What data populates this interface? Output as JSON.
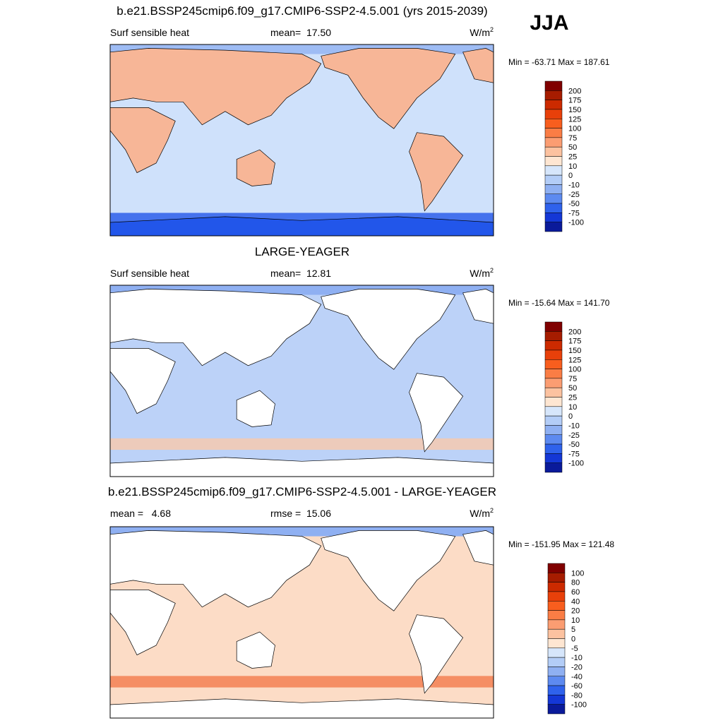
{
  "season": "JJA",
  "colorbar_colors": [
    "#800000",
    "#a61c00",
    "#cc2a00",
    "#e8400a",
    "#f85e1e",
    "#fa7d45",
    "#fb9d72",
    "#fcc2a0",
    "#fee6d2",
    "#d6e6fb",
    "#b3cdf7",
    "#8fb0f2",
    "#5d8af0",
    "#2f62ec",
    "#1437d6",
    "#0a1a9a"
  ],
  "panels": [
    {
      "title": "b.e21.BSSP245cmip6.f09_g17.CMIP6-SSP2-4.5.001 (yrs 2015-2039)",
      "left": "Surf sensible heat",
      "center": "mean=  17.50",
      "units": "W/m",
      "units_sup": "2",
      "range": "Min = -63.71 Max = 187.61",
      "colorbar": [
        200,
        175,
        150,
        125,
        100,
        75,
        50,
        25,
        10,
        0,
        -10,
        -25,
        -50,
        -75,
        -100
      ]
    },
    {
      "title": "LARGE-YEAGER",
      "left": "Surf sensible heat",
      "center": "mean=  12.81",
      "units": "W/m",
      "units_sup": "2",
      "range": "Min = -15.64 Max = 141.70",
      "colorbar": [
        200,
        175,
        150,
        125,
        100,
        75,
        50,
        25,
        10,
        0,
        -10,
        -25,
        -50,
        -75,
        -100
      ]
    },
    {
      "title": "b.e21.BSSP245cmip6.f09_g17.CMIP6-SSP2-4.5.001 - LARGE-YEAGER",
      "left": "mean =   4.68",
      "center": "rmse =  15.06",
      "units": "W/m",
      "units_sup": "2",
      "range": "Min = -151.95 Max = 121.48",
      "colorbar": [
        100,
        80,
        60,
        40,
        20,
        10,
        5,
        0,
        -5,
        -10,
        -20,
        -40,
        -60,
        -80,
        -100
      ]
    }
  ]
}
